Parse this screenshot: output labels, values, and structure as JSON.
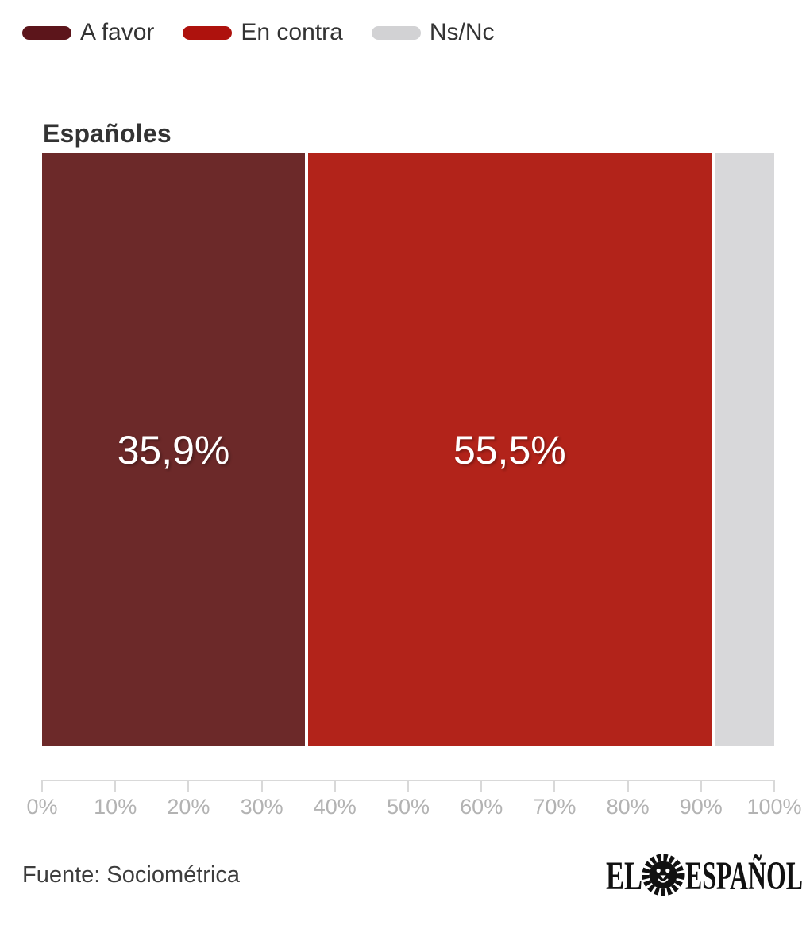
{
  "legend": {
    "items": [
      {
        "label": "A favor",
        "color": "#5c151b"
      },
      {
        "label": "En contra",
        "color": "#ae120d"
      },
      {
        "label": "Ns/Nc",
        "color": "#d2d2d4"
      }
    ]
  },
  "chart": {
    "title": "Españoles"
  },
  "chart_data": {
    "type": "bar",
    "subtype": "horizontal-stacked",
    "title": "Españoles",
    "categories": [
      "Españoles"
    ],
    "series": [
      {
        "name": "A favor",
        "values": [
          35.9
        ],
        "data_label": "35,9%",
        "color": "#6c2929",
        "legend_color": "#5c151b"
      },
      {
        "name": "En contra",
        "values": [
          55.5
        ],
        "data_label": "55,5%",
        "color": "#b2231a",
        "legend_color": "#ae120d"
      },
      {
        "name": "Ns/Nc",
        "values": [
          8.6
        ],
        "data_label": "",
        "color": "#d8d8da",
        "legend_color": "#d2d2d4"
      }
    ],
    "xlabel": "",
    "ylabel": "",
    "xlim": [
      0,
      100
    ],
    "x_ticks": [
      "0%",
      "10%",
      "20%",
      "30%",
      "40%",
      "50%",
      "60%",
      "70%",
      "80%",
      "90%",
      "100%"
    ],
    "grid": false,
    "legend_position": "top-left",
    "axis_color": "#d9d9d9",
    "tick_label_color": "#b3b3b3",
    "value_label_color": "#ffffff"
  },
  "footer": {
    "source": "Fuente: Sociométrica",
    "logo": {
      "text_el": "EL",
      "text_espanol": "ESPAÑOL",
      "color": "#111111"
    }
  }
}
